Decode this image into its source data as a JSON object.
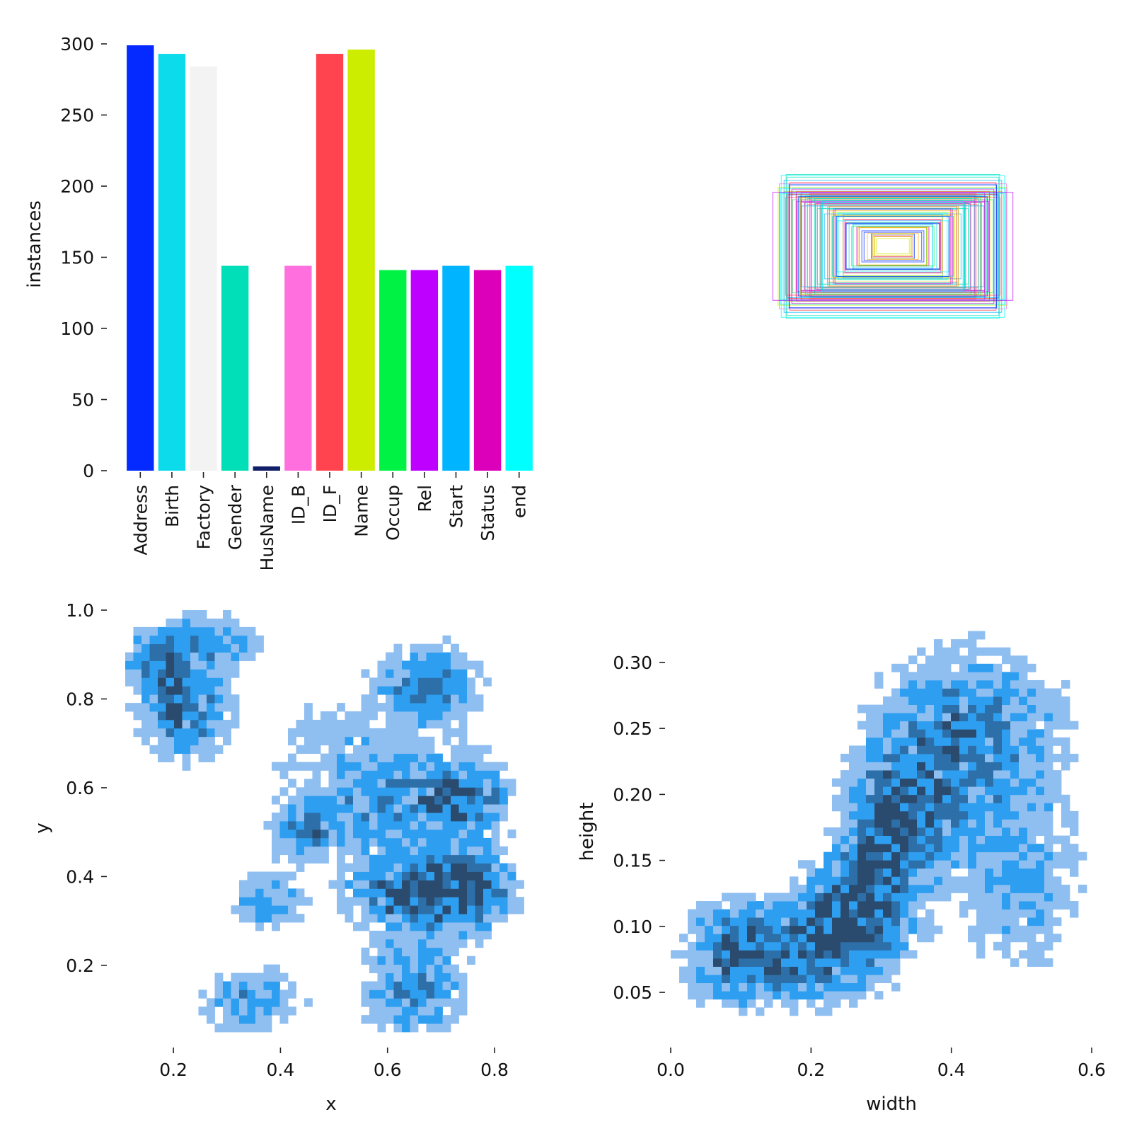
{
  "chart_data": [
    {
      "id": "labels",
      "type": "bar",
      "ylabel": "instances",
      "xlabel": "",
      "ylim": [
        0,
        300
      ],
      "yticks": [
        0,
        50,
        100,
        150,
        200,
        250,
        300
      ],
      "categories": [
        "Address",
        "Birth",
        "Factory",
        "Gender",
        "HusName",
        "ID_B",
        "ID_F",
        "Name",
        "Occup",
        "Rel",
        "Start",
        "Status",
        "end"
      ],
      "values": [
        299,
        293,
        284,
        144,
        3,
        144,
        293,
        296,
        141,
        141,
        144,
        141,
        144
      ],
      "colors": [
        "#042aff",
        "#0bdbeb",
        "#f3f3f3",
        "#00dfb7",
        "#111f68",
        "#ff6fdd",
        "#ff444f",
        "#cced00",
        "#00f344",
        "#bd00ff",
        "#00b4ff",
        "#dd00ba",
        "#00ffff"
      ]
    },
    {
      "id": "boxes",
      "type": "other",
      "description_free": true,
      "palette": [
        "#042aff",
        "#0bdbeb",
        "#00dfb7",
        "#ff6fdd",
        "#ff444f",
        "#cced00",
        "#00f344",
        "#bd00ff",
        "#00b4ff",
        "#dd00ba",
        "#00ffff",
        "#ffb000"
      ],
      "box_count": 90,
      "seed": 7
    },
    {
      "id": "xy",
      "type": "heatmap",
      "xlabel": "x",
      "ylabel": "y",
      "xlim": [
        0.11,
        0.87
      ],
      "ylim": [
        0.05,
        1.0
      ],
      "xticks": [
        "0.2",
        "0.4",
        "0.6",
        "0.8"
      ],
      "yticks": [
        "0.2",
        "0.4",
        "0.6",
        "0.8",
        "1.0"
      ],
      "cells": 50,
      "clusters": [
        [
          0.17,
          0.88,
          0.04,
          0.05,
          1.0
        ],
        [
          0.22,
          0.78,
          0.05,
          0.07,
          1.4
        ],
        [
          0.27,
          0.93,
          0.06,
          0.04,
          0.9
        ],
        [
          0.68,
          0.83,
          0.06,
          0.06,
          1.2
        ],
        [
          0.74,
          0.58,
          0.06,
          0.06,
          1.4
        ],
        [
          0.75,
          0.37,
          0.06,
          0.06,
          1.6
        ],
        [
          0.63,
          0.36,
          0.07,
          0.05,
          1.4
        ],
        [
          0.44,
          0.5,
          0.04,
          0.04,
          1.1
        ],
        [
          0.38,
          0.34,
          0.04,
          0.04,
          1.1
        ],
        [
          0.65,
          0.15,
          0.06,
          0.08,
          1.1
        ],
        [
          0.35,
          0.12,
          0.06,
          0.05,
          0.9
        ],
        [
          0.58,
          0.55,
          0.08,
          0.08,
          0.8
        ],
        [
          0.5,
          0.7,
          0.1,
          0.1,
          0.4
        ]
      ],
      "colors": [
        "#8fbef0",
        "#2e9ff0",
        "#2d6fa8",
        "#2a4a6e"
      ]
    },
    {
      "id": "wh",
      "type": "heatmap",
      "xlabel": "width",
      "ylabel": "height",
      "xlim": [
        0.0,
        0.605
      ],
      "ylim": [
        0.02,
        0.33
      ],
      "xticks": [
        "0.0",
        "0.2",
        "0.4",
        "0.6"
      ],
      "yticks": [
        "0.05",
        "0.10",
        "0.15",
        "0.20",
        "0.25",
        "0.30"
      ],
      "cells": 50,
      "clusters": [
        [
          0.08,
          0.08,
          0.04,
          0.025,
          1.3
        ],
        [
          0.17,
          0.08,
          0.05,
          0.025,
          1.1
        ],
        [
          0.25,
          0.1,
          0.05,
          0.03,
          1.4
        ],
        [
          0.3,
          0.15,
          0.04,
          0.04,
          1.2
        ],
        [
          0.34,
          0.2,
          0.05,
          0.04,
          0.9
        ],
        [
          0.45,
          0.22,
          0.08,
          0.05,
          0.8
        ],
        [
          0.5,
          0.12,
          0.06,
          0.04,
          0.6
        ],
        [
          0.42,
          0.27,
          0.08,
          0.03,
          0.5
        ]
      ],
      "colors": [
        "#8fbef0",
        "#2e9ff0",
        "#2d6fa8",
        "#2a4a6e"
      ]
    }
  ]
}
